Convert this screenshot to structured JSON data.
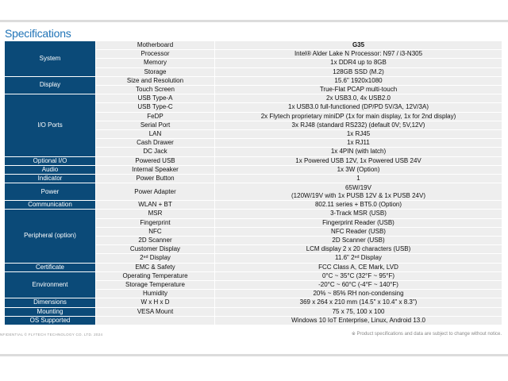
{
  "title": "Specifications",
  "groups": [
    {
      "label": "System",
      "rows": [
        {
          "name": "Motherboard",
          "value": "G35"
        },
        {
          "name": "Processor",
          "value": "Intel® Alder Lake N Processor: N97 / i3-N305"
        },
        {
          "name": "Memory",
          "value": "1x DDR4 up to 8GB"
        },
        {
          "name": "Storage",
          "value": "128GB SSD (M.2)"
        }
      ]
    },
    {
      "label": "Display",
      "rows": [
        {
          "name": "Size and Resolution",
          "value": "15.6\" 1920x1080"
        },
        {
          "name": "Touch Screen",
          "value": "True-Flat PCAP multi-touch"
        }
      ]
    },
    {
      "label": "I/O Ports",
      "rows": [
        {
          "name": "USB Type-A",
          "value": "2x USB3.0, 4x USB2.0"
        },
        {
          "name": "USB Type-C",
          "value": "1x USB3.0 full-functioned (DP/PD 5V/3A, 12V/3A)"
        },
        {
          "name": "FeDP",
          "value": "2x Flytech proprietary miniDP (1x for main display, 1x for 2nd display)"
        },
        {
          "name": "Serial Port",
          "value": "3x RJ48 (standard RS232) (default 0V; 5V,12V)"
        },
        {
          "name": "LAN",
          "value": "1x RJ45"
        },
        {
          "name": "Cash Drawer",
          "value": "1x RJ11"
        },
        {
          "name": "DC Jack",
          "value": "1x 4PIN (with latch)"
        }
      ]
    },
    {
      "label": "Optional I/O",
      "rows": [
        {
          "name": "Powered USB",
          "value": "1x Powered USB 12V, 1x Powered USB 24V"
        }
      ]
    },
    {
      "label": "Audio",
      "rows": [
        {
          "name": "Internal Speaker",
          "value": "1x 3W (Option)"
        }
      ]
    },
    {
      "label": "Indicator",
      "rows": [
        {
          "name": "Power Button",
          "value": "1"
        }
      ]
    },
    {
      "label": "Power",
      "rows": [
        {
          "name": "Power Adapter",
          "value": "65W/19V",
          "value2": "(120W/19V with 1x PUSB 12V & 1x PUSB 24V)"
        }
      ]
    },
    {
      "label": "Communication",
      "rows": [
        {
          "name": "WLAN + BT",
          "value": "802.11 series + BT5.0 (Option)"
        }
      ]
    },
    {
      "label": "Peripheral (option)",
      "rows": [
        {
          "name": "MSR",
          "value": "3-Track MSR (USB)"
        },
        {
          "name": "Fingerprint",
          "value": "Fingerprint Reader (USB)"
        },
        {
          "name": "NFC",
          "value": "NFC Reader (USB)"
        },
        {
          "name": "2D Scanner",
          "value": "2D Scanner (USB)"
        },
        {
          "name": "Customer Display",
          "value": "LCM display 2 x 20 characters (USB)"
        },
        {
          "name": "2ⁿᵈ Display",
          "value": "11.6\" 2ⁿᵈ Display"
        }
      ]
    },
    {
      "label": "Certificate",
      "rows": [
        {
          "name": "EMC & Safety",
          "value": "FCC Class A, CE Mark, LVD"
        }
      ]
    },
    {
      "label": "Environment",
      "rows": [
        {
          "name": "Operating Temperature",
          "value": "0°C ~ 35°C (32°F ~ 95°F)"
        },
        {
          "name": "Storage Temperature",
          "value": "-20°C ~ 60°C (-4°F ~ 140°F)"
        },
        {
          "name": "Humidity",
          "value": "20% ~ 85% RH non-condensing"
        }
      ]
    },
    {
      "label": "Dimensions",
      "rows": [
        {
          "name": "W x H x D",
          "value": "369 x 264 x 210 mm (14.5\" x 10.4\" x 8.3\")"
        }
      ]
    },
    {
      "label": "Mounting",
      "rows": [
        {
          "name": "VESA Mount",
          "value": "75 x 75, 100 x 100"
        }
      ]
    },
    {
      "label": "OS Supported",
      "rows": [
        {
          "name": "",
          "value": "Windows 10 IoT Enterprise, Linux, Android 13.0"
        }
      ]
    }
  ],
  "footer": {
    "left": "NFIDENTIAL © FLYTECH TECHNOLOGY CO. LTD. 2024",
    "right": "※ Product specifications and data are subject to change without notice."
  },
  "colors": {
    "title": "#1f73b7",
    "group_bg": "#0b4a78",
    "cell_bg": "#eeeeee"
  }
}
